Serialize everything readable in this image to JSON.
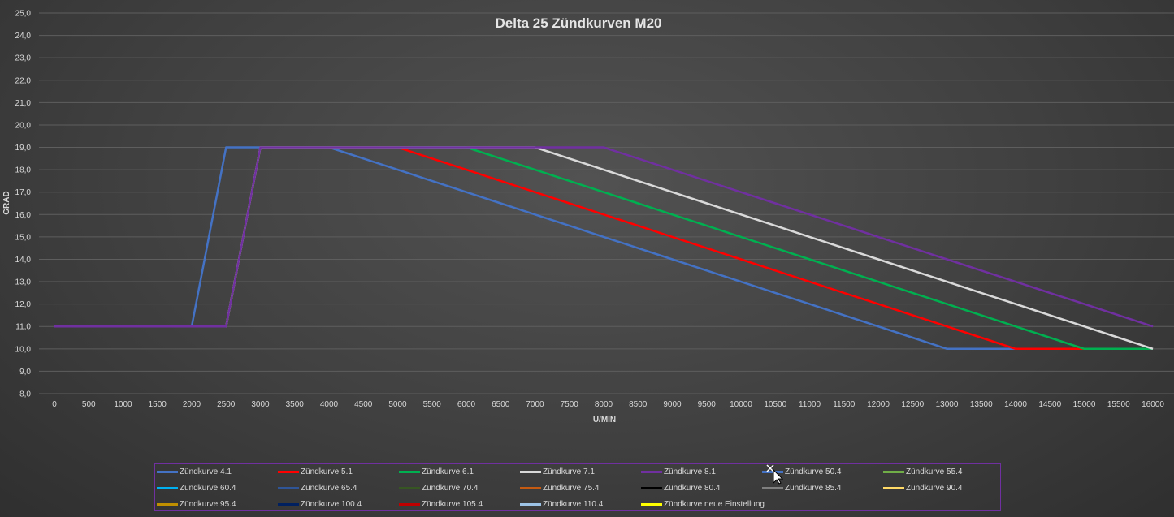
{
  "chart_data": {
    "type": "line",
    "title": "Delta 25 Zündkurven M20",
    "xlabel": "U/MIN",
    "ylabel": "GRAD",
    "x": [
      0,
      500,
      1000,
      1500,
      2000,
      2500,
      3000,
      3500,
      4000,
      4500,
      5000,
      5500,
      6000,
      6500,
      7000,
      7500,
      8000,
      8500,
      9000,
      9500,
      10000,
      10500,
      11000,
      11500,
      12000,
      12500,
      13000,
      13500,
      14000,
      14500,
      15000,
      15500,
      16000
    ],
    "x_tick_labels": [
      "0",
      "500",
      "1000",
      "1500",
      "2000",
      "2500",
      "3000",
      "3500",
      "4000",
      "4500",
      "5000",
      "5500",
      "6000",
      "6500",
      "7000",
      "7500",
      "8000",
      "8500",
      "9000",
      "9500",
      "10000",
      "10500",
      "11000",
      "11500",
      "12000",
      "12500",
      "13000",
      "13500",
      "14000",
      "14500",
      "15000",
      "15500",
      "16000"
    ],
    "ylim": [
      8,
      25
    ],
    "y_tick_labels": [
      "8,0",
      "9,0",
      "10,0",
      "11,0",
      "12,0",
      "13,0",
      "14,0",
      "15,0",
      "16,0",
      "17,0",
      "18,0",
      "19,0",
      "20,0",
      "21,0",
      "22,0",
      "23,0",
      "24,0",
      "25,0"
    ],
    "grid": true,
    "legend_position": "bottom",
    "series": [
      {
        "name": "Zündkurve 4.1",
        "color": "#4472c4",
        "values": [
          11,
          11,
          11,
          11,
          11,
          19,
          19,
          19,
          19,
          18.5,
          18,
          17.5,
          17,
          16.5,
          16,
          15.5,
          15,
          14.5,
          14,
          13.5,
          13,
          12.5,
          12,
          11.5,
          11,
          10.5,
          10,
          10,
          10,
          10,
          10,
          10,
          10
        ]
      },
      {
        "name": "Zündkurve 5.1",
        "color": "#ff0000",
        "values": [
          11,
          11,
          11,
          11,
          11,
          11,
          19,
          19,
          19,
          19,
          19,
          18.5,
          18,
          17.5,
          17,
          16.5,
          16,
          15.5,
          15,
          14.5,
          14,
          13.5,
          13,
          12.5,
          12,
          11.5,
          11,
          10.5,
          10,
          10,
          10,
          10,
          10
        ]
      },
      {
        "name": "Zündkurve 6.1",
        "color": "#00b050",
        "values": [
          11,
          11,
          11,
          11,
          11,
          11,
          19,
          19,
          19,
          19,
          19,
          19,
          19,
          18.5,
          18,
          17.5,
          17,
          16.5,
          16,
          15.5,
          15,
          14.5,
          14,
          13.5,
          13,
          12.5,
          12,
          11.5,
          11,
          10.5,
          10,
          10,
          10
        ]
      },
      {
        "name": "Zündkurve 7.1",
        "color": "#d9d9d9",
        "values": [
          11,
          11,
          11,
          11,
          11,
          11,
          19,
          19,
          19,
          19,
          19,
          19,
          19,
          19,
          19,
          18.5,
          18,
          17.5,
          17,
          16.5,
          16,
          15.5,
          15,
          14.5,
          14,
          13.5,
          13,
          12.5,
          12,
          11.5,
          11,
          10.5,
          10
        ]
      },
      {
        "name": "Zündkurve 8.1",
        "color": "#7030a0",
        "values": [
          11,
          11,
          11,
          11,
          11,
          11,
          19,
          19,
          19,
          19,
          19,
          19,
          19,
          19,
          19,
          19,
          19,
          18.5,
          18,
          17.5,
          17,
          16.5,
          16,
          15.5,
          15,
          14.5,
          14,
          13.5,
          13,
          12.5,
          12,
          11.5,
          11
        ]
      }
    ],
    "legend": [
      {
        "name": "Zündkurve 4.1",
        "color": "#4472c4"
      },
      {
        "name": "Zündkurve 5.1",
        "color": "#ff0000"
      },
      {
        "name": "Zündkurve 6.1",
        "color": "#00b050"
      },
      {
        "name": "Zündkurve 7.1",
        "color": "#d9d9d9"
      },
      {
        "name": "Zündkurve 8.1",
        "color": "#7030a0"
      },
      {
        "name": "Zündkurve 50.4",
        "color": "#4472c4"
      },
      {
        "name": "Zündkurve 55.4",
        "color": "#70ad47"
      },
      {
        "name": "Zündkurve 60.4",
        "color": "#00b0f0"
      },
      {
        "name": "Zündkurve 65.4",
        "color": "#2f5597"
      },
      {
        "name": "Zündkurve 70.4",
        "color": "#375623"
      },
      {
        "name": "Zündkurve 75.4",
        "color": "#c55a11"
      },
      {
        "name": "Zündkurve 80.4",
        "color": "#000000"
      },
      {
        "name": "Zündkurve 85.4",
        "color": "#7f7f7f"
      },
      {
        "name": "Zündkurve 90.4",
        "color": "#ffd966"
      },
      {
        "name": "Zündkurve 95.4",
        "color": "#bf8f00"
      },
      {
        "name": "Zündkurve 100.4",
        "color": "#002060"
      },
      {
        "name": "Zündkurve 105.4",
        "color": "#c00000"
      },
      {
        "name": "Zündkurve 110.4",
        "color": "#9dc3e6"
      },
      {
        "name": "Zündkurve neue Einstellung",
        "color": "#ffff00"
      }
    ]
  }
}
